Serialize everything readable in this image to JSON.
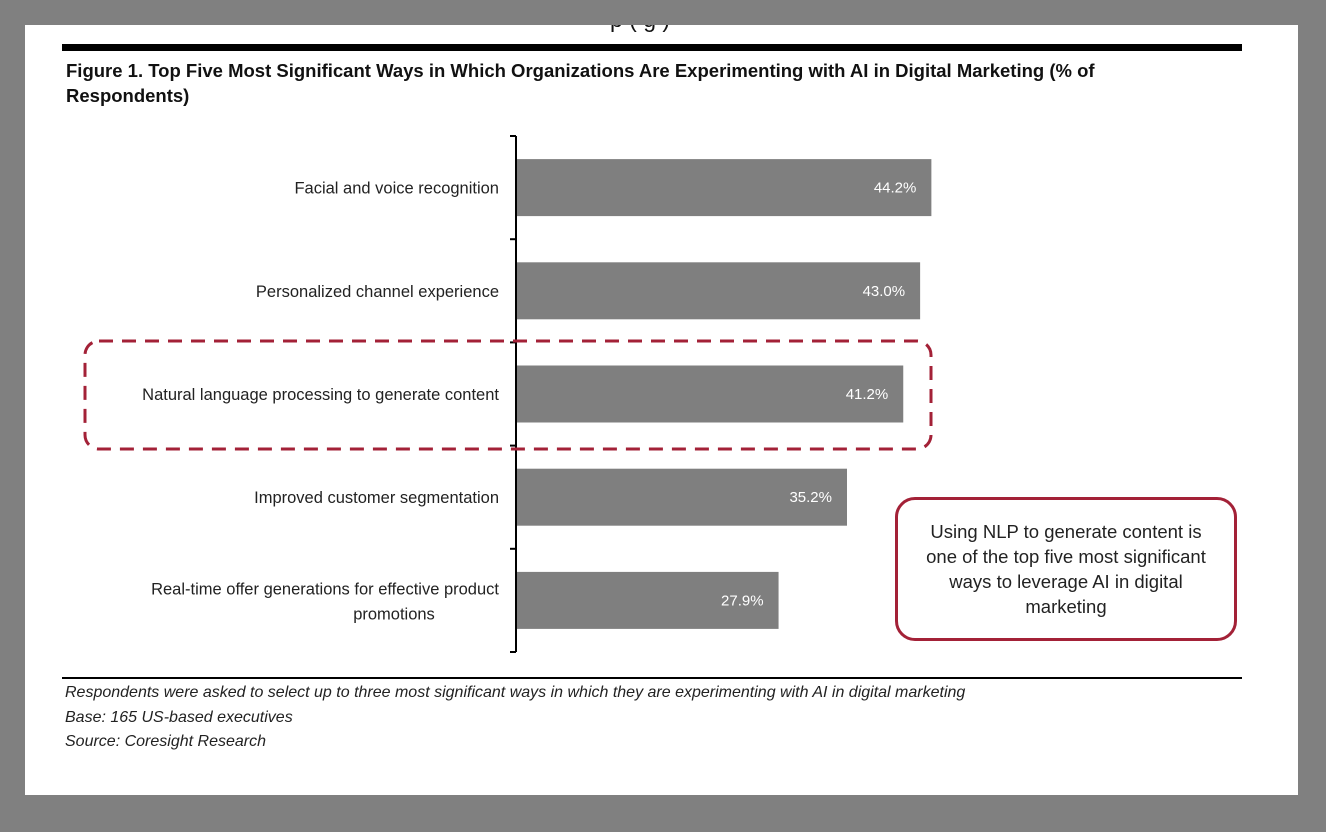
{
  "header": {
    "top_fragment": "p (  g  )",
    "figure_title": "Figure 1. Top Five Most Significant Ways in Which Organizations Are Experimenting with AI in Digital Marketing (% of Respondents)"
  },
  "chart_data": {
    "type": "bar",
    "orientation": "horizontal",
    "title": "Figure 1. Top Five Most Significant Ways in Which Organizations Are Experimenting with AI in Digital Marketing (% of Respondents)",
    "categories": [
      "Facial and voice recognition",
      "Personalized channel experience",
      "Natural language processing to generate content",
      "Improved customer segmentation",
      "Real-time offer generations for effective product promotions"
    ],
    "values": [
      44.2,
      43.0,
      41.2,
      35.2,
      27.9
    ],
    "value_labels": [
      "44.2%",
      "43.0%",
      "41.2%",
      "35.2%",
      "27.9%"
    ],
    "xlim": [
      0,
      50
    ],
    "xlabel": "",
    "ylabel": "",
    "highlighted_category": "Natural language processing to generate content",
    "bar_color": "#7f7f7f",
    "highlight_color": "#a32137"
  },
  "callout": {
    "text": "Using NLP to generate content is one of the top five most significant ways to leverage AI in digital marketing"
  },
  "footnotes": {
    "note": "Respondents were asked to select up to three most significant ways in which they are experimenting with AI in digital marketing",
    "base": "Base: 165 US-based executives",
    "source": "Source: Coresight Research"
  }
}
